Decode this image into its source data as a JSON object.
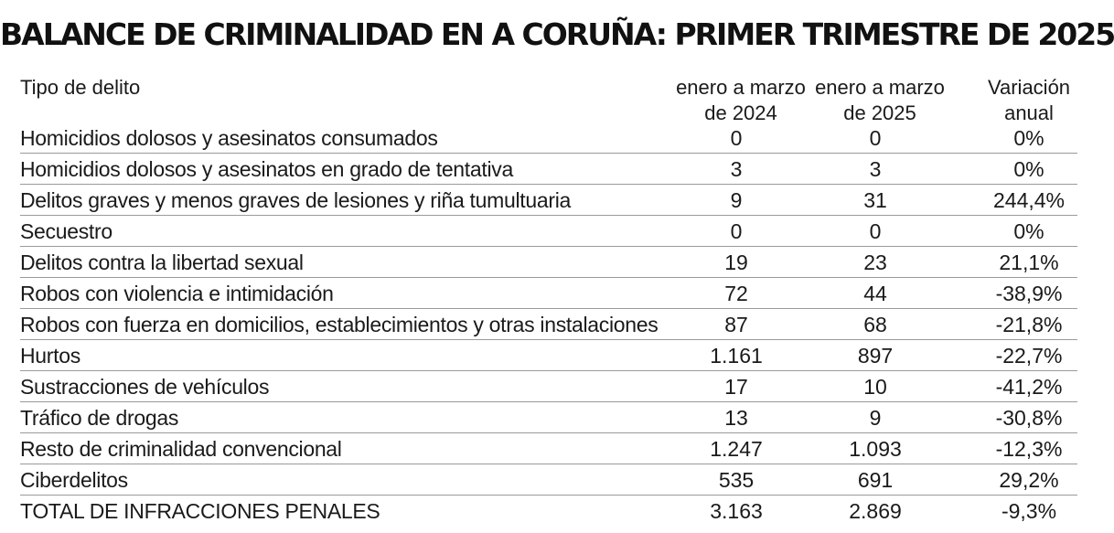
{
  "chart_data": {
    "type": "table",
    "title": "BALANCE DE CRIMINALIDAD EN A CORUÑA: PRIMER TRIMESTRE DE 2025",
    "columns": [
      "Tipo de delito",
      "enero a marzo\nde 2024",
      "enero a marzo\nde 2025",
      "Variación\nanual"
    ],
    "rows": [
      [
        "Homicidios dolosos y asesinatos consumados",
        "0",
        "0",
        "0%"
      ],
      [
        "Homicidios dolosos y asesinatos en grado de tentativa",
        "3",
        "3",
        "0%"
      ],
      [
        "Delitos graves y menos graves de lesiones y riña tumultuaria",
        "9",
        "31",
        "244,4%"
      ],
      [
        "Secuestro",
        "0",
        "0",
        "0%"
      ],
      [
        "Delitos contra la libertad sexual",
        "19",
        "23",
        "21,1%"
      ],
      [
        "Robos con violencia e intimidación",
        "72",
        "44",
        "-38,9%"
      ],
      [
        "Robos con fuerza en domicilios, establecimientos y otras instalaciones",
        "87",
        "68",
        "-21,8%"
      ],
      [
        "Hurtos",
        "1.161",
        "897",
        "-22,7%"
      ],
      [
        "Sustracciones de vehículos",
        "17",
        "10",
        "-41,2%"
      ],
      [
        "Tráfico de drogas",
        "13",
        "9",
        "-30,8%"
      ],
      [
        "Resto de criminalidad convencional",
        "1.247",
        "1.093",
        "-12,3%"
      ],
      [
        "Ciberdelitos",
        "535",
        "691",
        "29,2%"
      ],
      [
        "TOTAL DE INFRACCIONES PENALES",
        "3.163",
        "2.869",
        "-9,3%"
      ]
    ]
  }
}
